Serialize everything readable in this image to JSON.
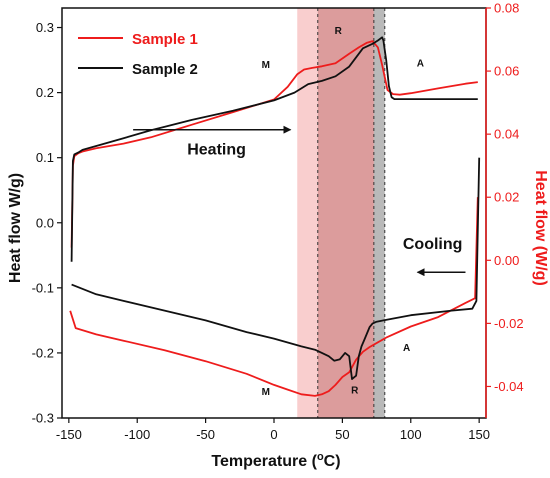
{
  "chart_data": {
    "type": "line",
    "xlabel": "Temperature (°C)",
    "ylabel_left": "Heat flow W/g)",
    "ylabel_right": "Heat flow (W/g)",
    "xlim": [
      -155,
      155
    ],
    "ylim_left": [
      -0.3,
      0.33
    ],
    "ylim_right": [
      -0.05,
      0.08
    ],
    "x_ticks": [
      -150,
      -100,
      -50,
      0,
      50,
      100,
      150
    ],
    "y_ticks_left": [
      -0.3,
      -0.2,
      -0.1,
      0.0,
      0.1,
      0.2,
      0.3
    ],
    "y_ticks_left_labels": [
      "-0.3",
      "-0.2",
      "-0.1",
      "0.0",
      "0.1",
      "0.2",
      "0.3"
    ],
    "y_ticks_right": [
      -0.04,
      -0.02,
      0.0,
      0.02,
      0.04,
      0.06,
      0.08
    ],
    "y_ticks_right_labels": [
      "-0.04",
      "-0.02",
      "0.00",
      "0.02",
      "0.04",
      "0.06",
      "0.08"
    ],
    "grid": false,
    "legend_position": "top-left",
    "colors": {
      "sample1": "#ee1c1c",
      "sample2": "#111111",
      "right_axis": "#ee1c1c"
    },
    "shaded_bands": [
      {
        "x_start": 17,
        "x_end": 32,
        "color": "#f4a6a6",
        "opacity": 0.55
      },
      {
        "x_start": 32,
        "x_end": 73,
        "color": "#c45a5a",
        "opacity": 0.6
      },
      {
        "x_start": 73,
        "x_end": 81,
        "color": "#8a8a8a",
        "opacity": 0.6
      }
    ],
    "dashed_lines_x": [
      32,
      73,
      81
    ],
    "series": [
      {
        "name": "Sample 1",
        "axis": "right",
        "color": "#ee1c1c",
        "heating": {
          "x": [
            -148,
            -147,
            -146,
            -143,
            -140,
            -130,
            -110,
            -90,
            -60,
            -30,
            0,
            10,
            17,
            22,
            28,
            35,
            45,
            55,
            62,
            68,
            72,
            76,
            79,
            83,
            87,
            92,
            100,
            120,
            140,
            149
          ],
          "y": [
            0.004,
            0.03,
            0.033,
            0.034,
            0.0345,
            0.0355,
            0.037,
            0.039,
            0.043,
            0.047,
            0.051,
            0.055,
            0.059,
            0.0605,
            0.061,
            0.0615,
            0.0625,
            0.0655,
            0.0675,
            0.069,
            0.0695,
            0.0675,
            0.062,
            0.054,
            0.0527,
            0.0525,
            0.053,
            0.0545,
            0.056,
            0.0565
          ]
        },
        "cooling": {
          "x": [
            149,
            147,
            140,
            120,
            100,
            82,
            76,
            70,
            65,
            60,
            55,
            50,
            45,
            40,
            35,
            30,
            20,
            10,
            0,
            -20,
            -50,
            -80,
            -110,
            -130,
            -145,
            -149
          ],
          "y": [
            0.02,
            -0.012,
            -0.0135,
            -0.018,
            -0.021,
            -0.0245,
            -0.026,
            -0.0275,
            -0.029,
            -0.0315,
            -0.0355,
            -0.037,
            -0.0395,
            -0.0415,
            -0.0425,
            -0.043,
            -0.0425,
            -0.041,
            -0.0395,
            -0.036,
            -0.032,
            -0.0285,
            -0.0255,
            -0.0235,
            -0.0215,
            -0.016
          ]
        }
      },
      {
        "name": "Sample 2",
        "axis": "left",
        "color": "#111111",
        "heating": {
          "x": [
            -148,
            -147,
            -146,
            -143,
            -140,
            -130,
            -110,
            -90,
            -60,
            -30,
            0,
            15,
            25,
            35,
            45,
            55,
            65,
            72,
            76,
            79,
            80,
            82,
            84,
            86,
            88,
            90,
            100,
            120,
            140,
            149
          ],
          "y": [
            -0.06,
            0.095,
            0.105,
            0.108,
            0.112,
            0.118,
            0.13,
            0.142,
            0.158,
            0.172,
            0.188,
            0.2,
            0.213,
            0.218,
            0.225,
            0.24,
            0.268,
            0.275,
            0.28,
            0.285,
            0.28,
            0.25,
            0.21,
            0.193,
            0.19,
            0.19,
            0.19,
            0.19,
            0.19,
            0.19
          ]
        },
        "cooling": {
          "x": [
            150,
            148,
            145,
            130,
            100,
            80,
            75,
            72,
            70,
            68,
            66,
            64,
            62,
            60,
            57,
            55,
            52,
            48,
            44,
            40,
            35,
            30,
            20,
            0,
            -20,
            -50,
            -80,
            -110,
            -130,
            -148
          ],
          "y": [
            0.1,
            -0.12,
            -0.132,
            -0.135,
            -0.142,
            -0.15,
            -0.152,
            -0.155,
            -0.16,
            -0.17,
            -0.18,
            -0.19,
            -0.205,
            -0.235,
            -0.24,
            -0.205,
            -0.2,
            -0.21,
            -0.212,
            -0.205,
            -0.2,
            -0.195,
            -0.19,
            -0.178,
            -0.168,
            -0.15,
            -0.135,
            -0.12,
            -0.11,
            -0.095
          ]
        }
      }
    ],
    "annotations": [
      {
        "text": "M",
        "x": -6,
        "y_left": 0.238
      },
      {
        "text": "R",
        "x": 47,
        "y_left": 0.29
      },
      {
        "text": "A",
        "x": 107,
        "y_left": 0.24
      },
      {
        "text": "M",
        "x": -6,
        "y_left": -0.265
      },
      {
        "text": "R",
        "x": 59,
        "y_left": -0.262
      },
      {
        "text": "A",
        "x": 97,
        "y_left": -0.197
      }
    ],
    "arrow_labels": [
      {
        "text": "Heating",
        "x": -42,
        "y_left": 0.105,
        "arrow": {
          "x1": -103,
          "x2": 12,
          "y_left": 0.143
        }
      },
      {
        "text": "Cooling",
        "x": 116,
        "y_left": -0.04,
        "arrow": {
          "x1": 140,
          "x2": 105,
          "y_left": -0.076
        }
      }
    ]
  }
}
